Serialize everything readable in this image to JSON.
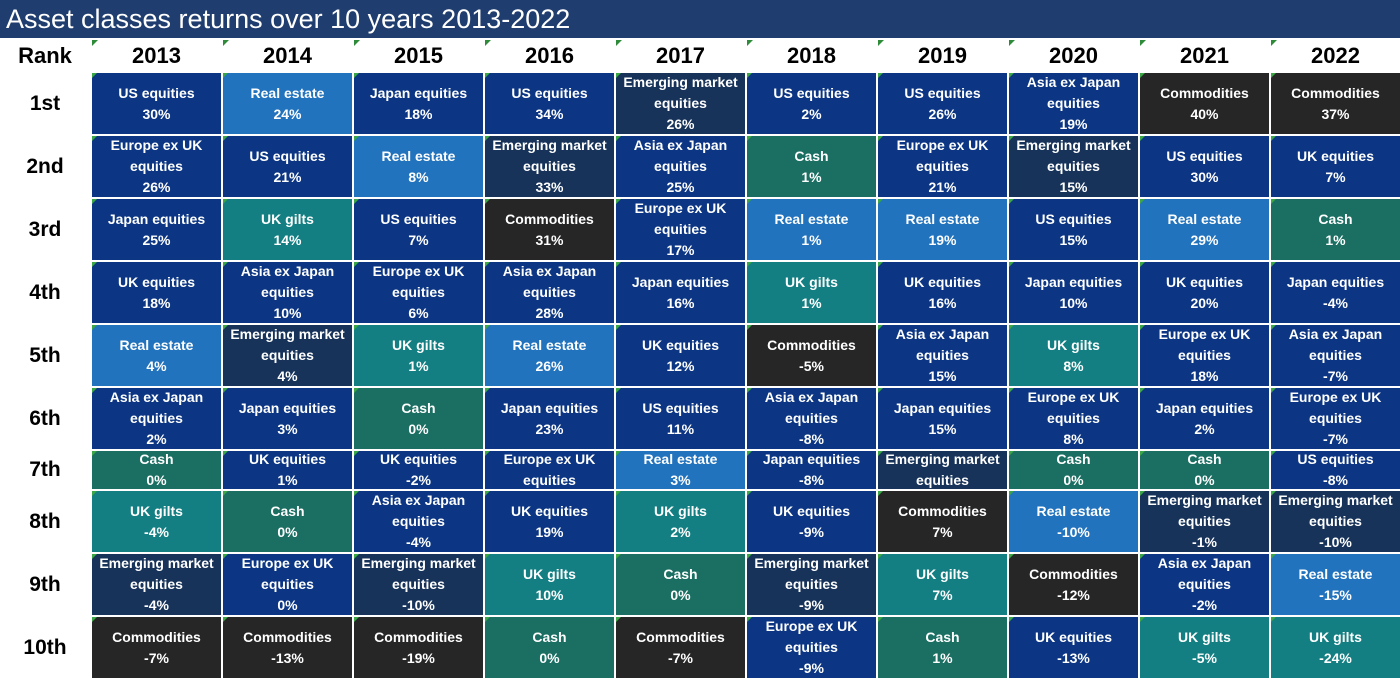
{
  "title": "Asset classes returns over 10 years 2013-2022",
  "rank_label": "Rank",
  "colors": {
    "US equities": "#0c3683",
    "Real estate": "#2273bd",
    "Japan equities": "#0c3683",
    "Emerging market equities": "#17335a",
    "Asia ex Japan equities": "#0c3683",
    "Commodities": "#262626",
    "Europe ex UK equities": "#0c3683",
    "Cash": "#1a6e62",
    "UK gilts": "#137f83",
    "UK equities": "#0c3683"
  },
  "chart_data": {
    "type": "table",
    "title": "Asset classes returns over 10 years 2013-2022",
    "columns": [
      "2013",
      "2014",
      "2015",
      "2016",
      "2017",
      "2018",
      "2019",
      "2020",
      "2021",
      "2022"
    ],
    "ranks": [
      "1st",
      "2nd",
      "3rd",
      "4th",
      "5th",
      "6th",
      "7th",
      "8th",
      "9th",
      "10th"
    ],
    "cells": [
      [
        {
          "name": "US equities",
          "value": "30%"
        },
        {
          "name": "Real estate",
          "value": "24%"
        },
        {
          "name": "Japan equities",
          "value": "18%"
        },
        {
          "name": "US equities",
          "value": "34%"
        },
        {
          "name": "Emerging market equities",
          "value": "26%"
        },
        {
          "name": "US equities",
          "value": "2%"
        },
        {
          "name": "US equities",
          "value": "26%"
        },
        {
          "name": "Asia ex Japan equities",
          "value": "19%"
        },
        {
          "name": "Commodities",
          "value": "40%"
        },
        {
          "name": "Commodities",
          "value": "37%"
        }
      ],
      [
        {
          "name": "Europe ex UK equities",
          "value": "26%"
        },
        {
          "name": "US equities",
          "value": "21%"
        },
        {
          "name": "Real estate",
          "value": "8%"
        },
        {
          "name": "Emerging market equities",
          "value": "33%"
        },
        {
          "name": "Asia ex Japan equities",
          "value": "25%"
        },
        {
          "name": "Cash",
          "value": "1%"
        },
        {
          "name": "Europe ex UK equities",
          "value": "21%"
        },
        {
          "name": "Emerging market equities",
          "value": "15%"
        },
        {
          "name": "US equities",
          "value": "30%"
        },
        {
          "name": "UK equities",
          "value": "7%"
        }
      ],
      [
        {
          "name": "Japan equities",
          "value": "25%"
        },
        {
          "name": "UK gilts",
          "value": "14%"
        },
        {
          "name": "US equities",
          "value": "7%"
        },
        {
          "name": "Commodities",
          "value": "31%"
        },
        {
          "name": "Europe ex UK equities",
          "value": "17%"
        },
        {
          "name": "Real estate",
          "value": "1%"
        },
        {
          "name": "Real estate",
          "value": "19%"
        },
        {
          "name": "US equities",
          "value": "15%"
        },
        {
          "name": "Real estate",
          "value": "29%"
        },
        {
          "name": "Cash",
          "value": "1%"
        }
      ],
      [
        {
          "name": "UK equities",
          "value": "18%"
        },
        {
          "name": "Asia ex Japan equities",
          "value": "10%"
        },
        {
          "name": "Europe ex UK equities",
          "value": "6%"
        },
        {
          "name": "Asia ex Japan equities",
          "value": "28%"
        },
        {
          "name": "Japan equities",
          "value": "16%"
        },
        {
          "name": "UK gilts",
          "value": "1%"
        },
        {
          "name": "UK equities",
          "value": "16%"
        },
        {
          "name": "Japan equities",
          "value": "10%"
        },
        {
          "name": "UK equities",
          "value": "20%"
        },
        {
          "name": "Japan equities",
          "value": "-4%"
        }
      ],
      [
        {
          "name": "Real estate",
          "value": "4%"
        },
        {
          "name": "Emerging market equities",
          "value": "4%"
        },
        {
          "name": "UK gilts",
          "value": "1%"
        },
        {
          "name": "Real estate",
          "value": "26%"
        },
        {
          "name": "UK equities",
          "value": "12%"
        },
        {
          "name": "Commodities",
          "value": "-5%"
        },
        {
          "name": "Asia ex Japan equities",
          "value": "15%"
        },
        {
          "name": "UK gilts",
          "value": "8%"
        },
        {
          "name": "Europe ex UK equities",
          "value": "18%"
        },
        {
          "name": "Asia ex Japan equities",
          "value": "-7%"
        }
      ],
      [
        {
          "name": "Asia ex Japan equities",
          "value": "2%"
        },
        {
          "name": "Japan equities",
          "value": "3%"
        },
        {
          "name": "Cash",
          "value": "0%"
        },
        {
          "name": "Japan equities",
          "value": "23%"
        },
        {
          "name": "US equities",
          "value": "11%"
        },
        {
          "name": "Asia ex Japan equities",
          "value": "-8%"
        },
        {
          "name": "Japan equities",
          "value": "15%"
        },
        {
          "name": "Europe ex UK equities",
          "value": "8%"
        },
        {
          "name": "Japan equities",
          "value": "2%"
        },
        {
          "name": "Europe ex UK equities",
          "value": "-7%"
        }
      ],
      [
        {
          "name": "Cash",
          "value": "0%"
        },
        {
          "name": "UK equities",
          "value": "1%"
        },
        {
          "name": "UK equities",
          "value": "-2%"
        },
        {
          "name": "Europe ex UK equities",
          "value": ""
        },
        {
          "name": "Real estate",
          "value": "3%"
        },
        {
          "name": "Japan equities",
          "value": "-8%"
        },
        {
          "name": "Emerging market equities",
          "value": ""
        },
        {
          "name": "Cash",
          "value": "0%"
        },
        {
          "name": "Cash",
          "value": "0%"
        },
        {
          "name": "US equities",
          "value": "-8%"
        }
      ],
      [
        {
          "name": "UK gilts",
          "value": "-4%"
        },
        {
          "name": "Cash",
          "value": "0%"
        },
        {
          "name": "Asia ex Japan equities",
          "value": "-4%"
        },
        {
          "name": "UK equities",
          "value": "19%"
        },
        {
          "name": "UK gilts",
          "value": "2%"
        },
        {
          "name": "UK equities",
          "value": "-9%"
        },
        {
          "name": "Commodities",
          "value": "7%"
        },
        {
          "name": "Real estate",
          "value": "-10%"
        },
        {
          "name": "Emerging market equities",
          "value": "-1%"
        },
        {
          "name": "Emerging market equities",
          "value": "-10%"
        }
      ],
      [
        {
          "name": "Emerging market equities",
          "value": "-4%"
        },
        {
          "name": "Europe ex UK equities",
          "value": "0%"
        },
        {
          "name": "Emerging market equities",
          "value": "-10%"
        },
        {
          "name": "UK gilts",
          "value": "10%"
        },
        {
          "name": "Cash",
          "value": "0%"
        },
        {
          "name": "Emerging market equities",
          "value": "-9%"
        },
        {
          "name": "UK gilts",
          "value": "7%"
        },
        {
          "name": "Commodities",
          "value": "-12%"
        },
        {
          "name": "Asia ex Japan equities",
          "value": "-2%"
        },
        {
          "name": "Real estate",
          "value": "-15%"
        }
      ],
      [
        {
          "name": "Commodities",
          "value": "-7%"
        },
        {
          "name": "Commodities",
          "value": "-13%"
        },
        {
          "name": "Commodities",
          "value": "-19%"
        },
        {
          "name": "Cash",
          "value": "0%"
        },
        {
          "name": "Commodities",
          "value": "-7%"
        },
        {
          "name": "Europe ex UK equities",
          "value": "-9%"
        },
        {
          "name": "Cash",
          "value": "1%"
        },
        {
          "name": "UK equities",
          "value": "-13%"
        },
        {
          "name": "UK gilts",
          "value": "-5%"
        },
        {
          "name": "UK gilts",
          "value": "-24%"
        }
      ]
    ]
  }
}
